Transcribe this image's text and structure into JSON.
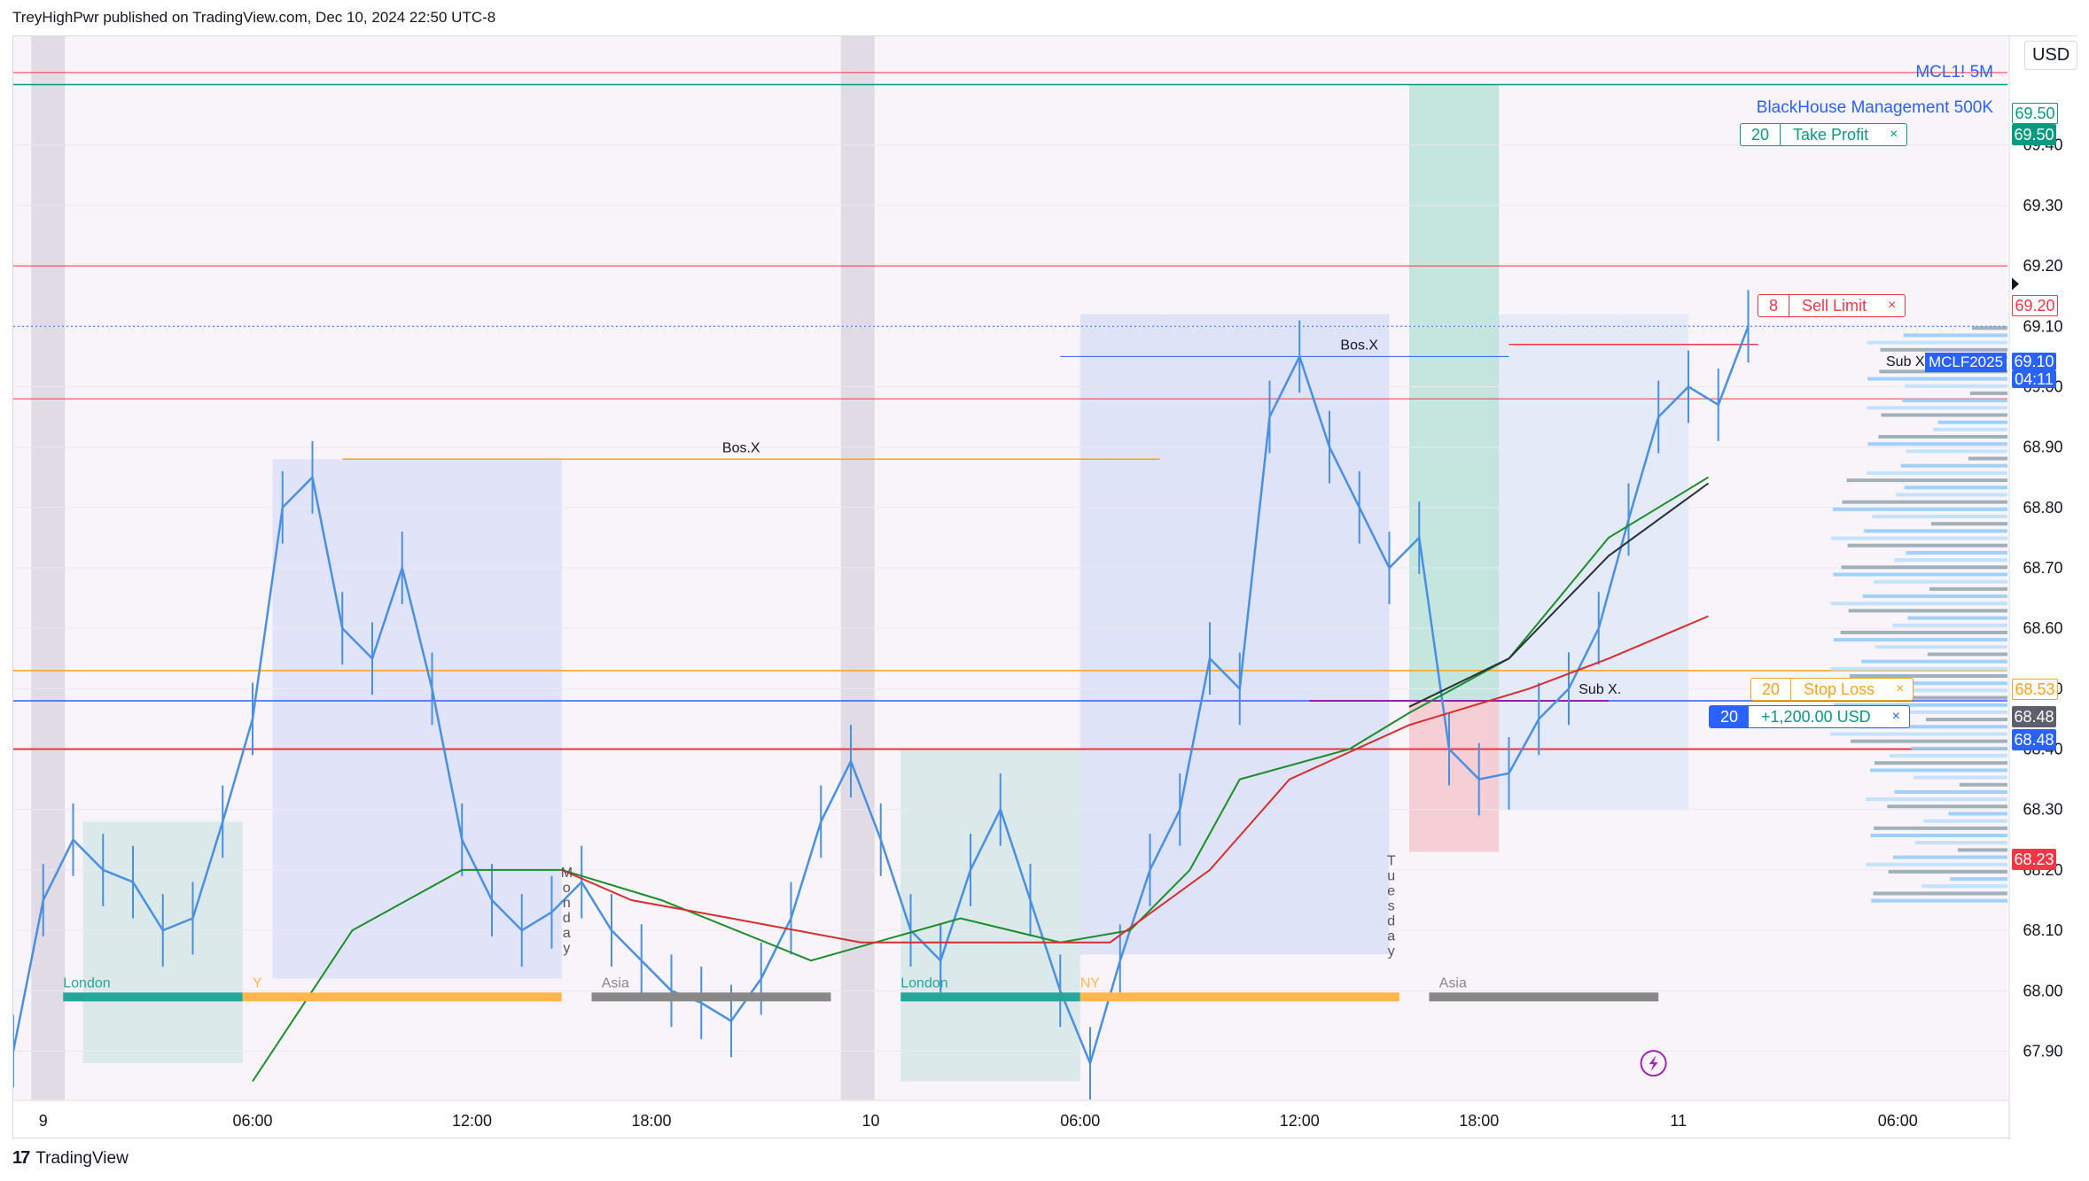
{
  "header": {
    "text": "TreyHighPwr published on TradingView.com, Dec 10, 2024 22:50 UTC-8"
  },
  "footer": {
    "brand": "TradingView",
    "logo": "17"
  },
  "currency": "USD",
  "symbol": {
    "title": "MCL1! 5M",
    "subtitle": "BlackHouse Management 500K"
  },
  "colors": {
    "up": "#4a90e2",
    "take_profit": "#089981",
    "stop": "#f7a21b",
    "sell": "#f23645",
    "position": "#2962ff"
  },
  "orders": {
    "take_profit": {
      "qty": "20",
      "label": "Take Profit",
      "close": "×",
      "price": "69.50"
    },
    "sell_limit": {
      "qty": "8",
      "label": "Sell Limit",
      "close": "×",
      "price": "69.20"
    },
    "stop_loss": {
      "qty": "20",
      "label": "Stop Loss",
      "close": "×",
      "price": "68.53"
    },
    "position": {
      "qty": "20",
      "label": "+1,200.00 USD",
      "close": "×",
      "price": "68.48"
    }
  },
  "axis_labels": {
    "tp_top": "69.50",
    "current_price": "69.10",
    "countdown": "04:11",
    "symbol_tag": "MCLF2025",
    "sub_x_label": "Sub X",
    "entry": "68.48",
    "lower_red": "68.23"
  },
  "annotations": {
    "bos_left": "Bos.X",
    "bos_right": "Bos.X",
    "sub_x": "Sub X.",
    "monday": "Monday",
    "tuesday": "Tuesday",
    "sessions": [
      "London",
      "Y",
      "Asia",
      "London",
      "NY",
      "Asia"
    ]
  },
  "chart_data": {
    "type": "line",
    "title": "MCL1! 5M",
    "subtitle": "BlackHouse Management 500K",
    "xlabel": "",
    "ylabel": "",
    "ylim": [
      67.82,
      69.58
    ],
    "x_ticks": [
      "9",
      "06:00",
      "12:00",
      "18:00",
      "10",
      "06:00",
      "12:00",
      "18:00",
      "11",
      "06:00"
    ],
    "y_ticks": [
      "69.40",
      "69.30",
      "69.20",
      "69.10",
      "69.00",
      "68.90",
      "68.80",
      "68.70",
      "68.60",
      "68.50",
      "68.40",
      "68.30",
      "68.20",
      "68.10",
      "68.00",
      "67.90"
    ],
    "series": [
      {
        "name": "",
        "x": [
          0,
          3,
          6,
          9,
          12,
          15,
          18,
          21,
          24,
          27,
          30,
          33,
          36,
          39,
          42,
          45,
          48,
          51,
          54
        ],
        "values": [
          67.9,
          68.15,
          68.25,
          68.2,
          68.18,
          68.1,
          68.12,
          68.28,
          68.45,
          68.8,
          68.85,
          68.6,
          68.55,
          68.7,
          68.5,
          68.25,
          68.15,
          68.1,
          68.13
        ]
      },
      {
        "name": "",
        "x": [
          54,
          57,
          60,
          63,
          66,
          69,
          72,
          75,
          78,
          81,
          84,
          87,
          90,
          93
        ],
        "values": [
          68.13,
          68.18,
          68.1,
          68.05,
          68.0,
          67.98,
          67.95,
          68.02,
          68.12,
          68.28,
          68.38,
          68.25,
          68.1,
          68.05
        ]
      },
      {
        "name": "",
        "x": [
          93,
          96,
          99,
          102,
          105,
          108,
          111,
          114,
          117,
          120,
          123,
          126,
          129,
          132,
          135,
          138,
          141,
          144,
          147,
          150,
          153,
          156,
          159,
          162,
          165,
          168,
          171,
          174
        ],
        "values": [
          68.05,
          68.2,
          68.3,
          68.15,
          68.0,
          67.88,
          68.05,
          68.2,
          68.3,
          68.55,
          68.5,
          68.95,
          69.05,
          68.9,
          68.8,
          68.7,
          68.75,
          68.4,
          68.35,
          68.36,
          68.45,
          68.5,
          68.6,
          68.78,
          68.95,
          69.0,
          68.97,
          69.1
        ]
      }
    ],
    "levels": [
      {
        "name": "Take Profit",
        "value": 69.5
      },
      {
        "name": "Sell Limit",
        "value": 69.2
      },
      {
        "name": "Stop Loss",
        "value": 68.53
      },
      {
        "name": "Position",
        "value": 68.48
      }
    ]
  }
}
